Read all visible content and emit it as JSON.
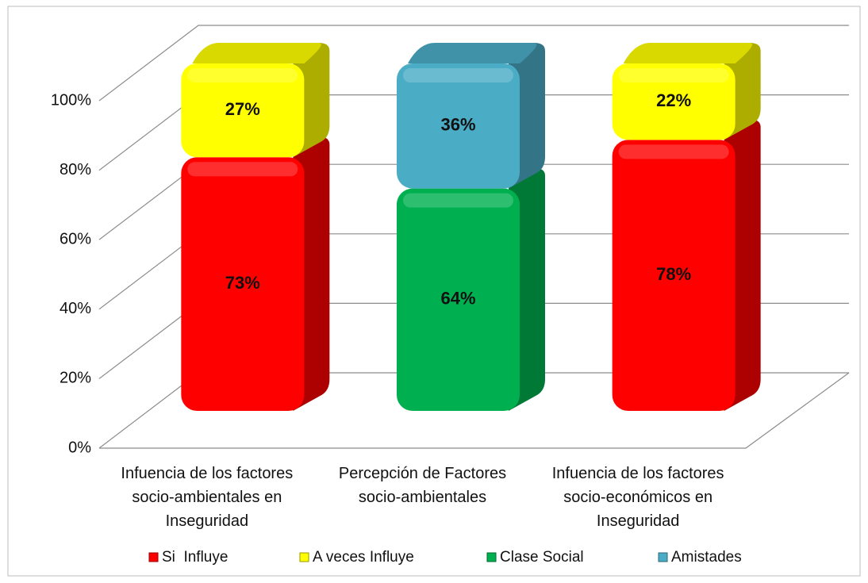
{
  "chart_data": {
    "type": "bar3d_stacked",
    "categories": [
      "Infuencia de los factores socio-ambientales  en Inseguridad",
      "Percepción  de Factores socio-ambientales",
      "Infuencia de los factores socio-económicos  en Inseguridad"
    ],
    "series": [
      {
        "name": "Si  Influye",
        "color": "#ff0000",
        "values": [
          73,
          null,
          78
        ],
        "value_labels": [
          "73%",
          null,
          "78%"
        ]
      },
      {
        "name": "A veces Influye",
        "color": "#ffff00",
        "values": [
          27,
          null,
          22
        ],
        "value_labels": [
          "27%",
          null,
          "22%"
        ]
      },
      {
        "name": "Clase Social",
        "color": "#00b050",
        "values": [
          null,
          64,
          null
        ],
        "value_labels": [
          null,
          "64%",
          null
        ]
      },
      {
        "name": "Amistades",
        "color": "#4bacc6",
        "values": [
          null,
          36,
          null
        ],
        "value_labels": [
          null,
          "36%",
          null
        ]
      }
    ],
    "ylim": [
      0,
      100
    ],
    "yticks": [
      {
        "value": 0,
        "label": "0%"
      },
      {
        "value": 20,
        "label": "20%"
      },
      {
        "value": 40,
        "label": "40%"
      },
      {
        "value": 60,
        "label": "60%"
      },
      {
        "value": 80,
        "label": "80%"
      },
      {
        "value": 100,
        "label": "100%"
      }
    ],
    "grid": true,
    "legend": "bottom"
  }
}
